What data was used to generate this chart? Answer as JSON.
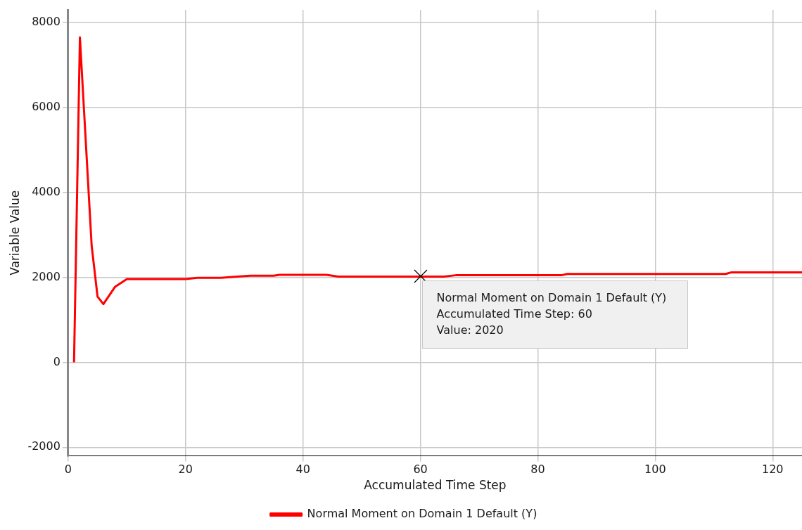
{
  "chart_data": {
    "type": "line",
    "xlabel": "Accumulated Time Step",
    "ylabel": "Variable Value",
    "x": [
      1,
      2,
      4,
      5,
      6,
      8,
      10,
      20,
      22,
      26,
      28,
      31,
      35,
      36,
      44,
      46,
      60,
      64,
      66,
      84,
      85,
      112,
      113,
      125
    ],
    "series": [
      {
        "name": "Normal Moment on Domain 1 Default (Y)",
        "color": "#ff0000",
        "values": [
          0,
          7650,
          2750,
          1550,
          1370,
          1780,
          1960,
          1960,
          1990,
          1990,
          2010,
          2040,
          2040,
          2060,
          2060,
          2020,
          2020,
          2020,
          2050,
          2050,
          2080,
          2080,
          2120,
          2120
        ]
      }
    ],
    "xlim": [
      0,
      125
    ],
    "xticks": [
      0,
      20,
      40,
      60,
      80,
      100,
      120
    ],
    "ylim": [
      -2200,
      8300
    ],
    "yticks": [
      -2000,
      0,
      2000,
      4000,
      6000,
      8000
    ],
    "grid": true,
    "legend": "bottom",
    "marker": "none",
    "line_style": "solid",
    "annotations": [
      {
        "text": "Normal Moment on Domain 1 Default (Y)\nAccumulated Time Step: 60\nValue: 2020",
        "x": 60,
        "y": 2020
      }
    ]
  }
}
